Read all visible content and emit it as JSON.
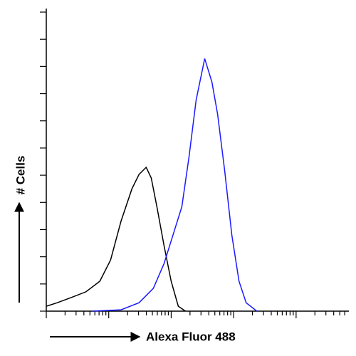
{
  "chart_data": {
    "type": "line",
    "x_label": "Alexa Fluor 488",
    "y_label": "# Cells",
    "xlog": true,
    "xlim": [
      1,
      70000
    ],
    "ylim": [
      0,
      11
    ],
    "xticks": [
      1,
      2,
      3,
      4,
      5,
      6,
      7,
      8,
      9,
      10,
      20,
      30,
      40,
      50,
      60,
      70,
      80,
      90,
      100,
      200,
      300,
      400,
      500,
      600,
      700,
      800,
      900,
      1000,
      2000,
      3000,
      4000,
      5000,
      6000,
      7000,
      8000,
      9000,
      10000,
      20000,
      30000,
      40000,
      50000,
      60000
    ],
    "yticks": [
      0,
      1,
      2,
      3,
      4,
      5,
      6,
      7,
      8,
      9,
      10,
      11
    ],
    "series": [
      {
        "color": "#000000",
        "x": [
          1,
          1.5,
          2.5,
          4.3,
          7.2,
          10.7,
          15.8,
          23.5,
          30.6,
          39.8,
          47.9,
          59,
          76.9,
          100,
          130,
          169
        ],
        "values": [
          0.18,
          0.31,
          0.5,
          0.71,
          1.1,
          1.88,
          3.32,
          4.5,
          5.03,
          5.29,
          4.9,
          3.85,
          2.41,
          1.1,
          0.18,
          0
        ]
      },
      {
        "color": "#1a1aff",
        "x": [
          5.5,
          15.8,
          30.6,
          51.8,
          76.9,
          148,
          193,
          251,
          344,
          448,
          553,
          720,
          936,
          1218,
          1585,
          2350
        ],
        "values": [
          0,
          0.05,
          0.31,
          0.84,
          1.75,
          3.84,
          5.68,
          7.77,
          9.29,
          8.43,
          7.25,
          5.16,
          2.8,
          1.1,
          0.31,
          0
        ]
      }
    ]
  }
}
